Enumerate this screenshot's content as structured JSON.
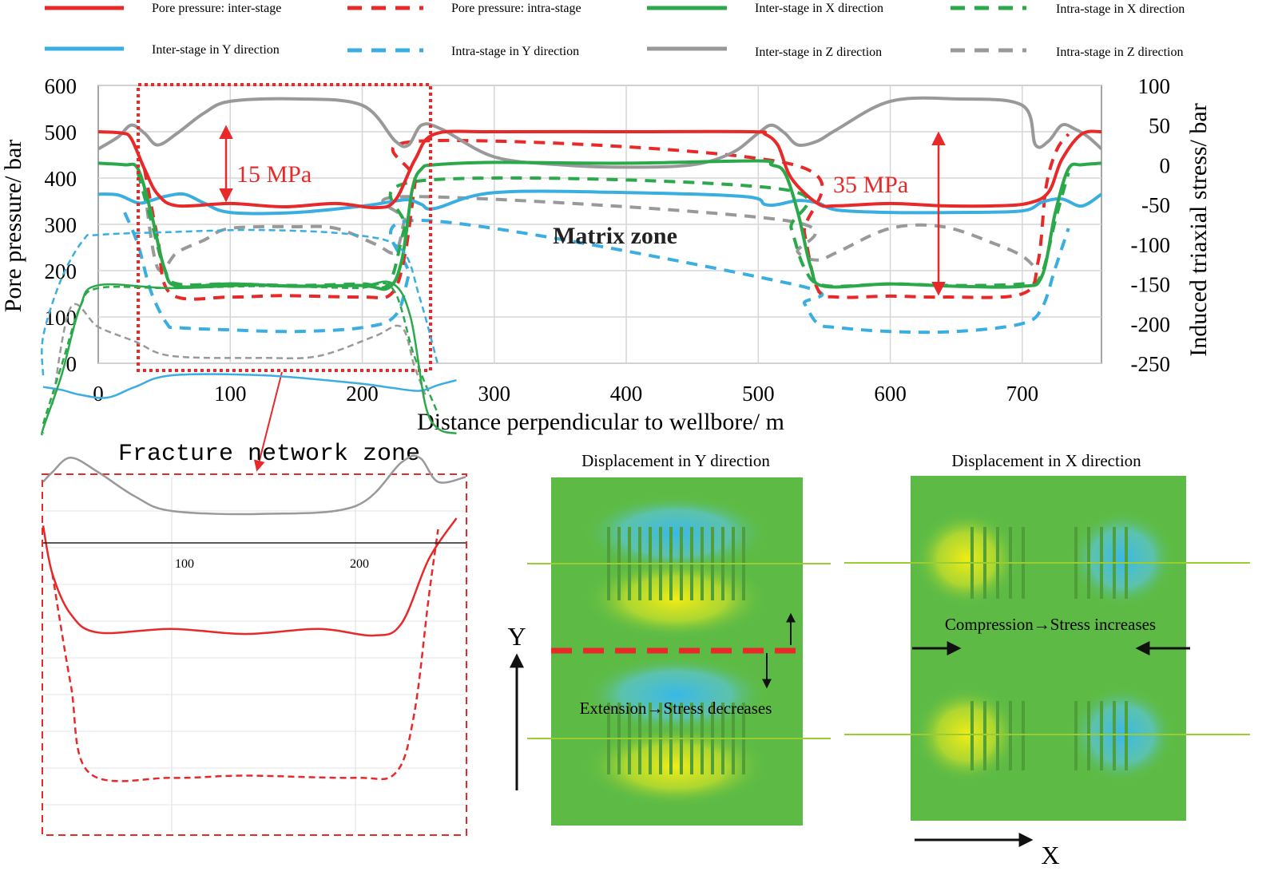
{
  "chart_data": {
    "type": "line",
    "x_range": [
      0,
      760
    ],
    "x_ticks": [
      0,
      100,
      200,
      300,
      400,
      500,
      600,
      700
    ],
    "xlabel": "Distance perpendicular to wellbore/ m",
    "ylabel_left": "Pore pressure/ bar",
    "ylabel_right": "Induced triaxial stress/ bar",
    "y_left_range": [
      0,
      600
    ],
    "y_left_ticks": [
      0,
      100,
      200,
      300,
      400,
      500,
      600
    ],
    "y_right_range": [
      -250,
      100
    ],
    "y_right_ticks": [
      -250,
      -200,
      -150,
      -100,
      -50,
      0,
      50,
      100
    ],
    "legend": [
      {
        "id": "pp_inter",
        "label": "Pore pressure: inter-stage",
        "color": "#e8292a",
        "dash": false,
        "axis": "left"
      },
      {
        "id": "pp_intra",
        "label": "Pore pressure: intra-stage",
        "color": "#e8292a",
        "dash": true,
        "axis": "left"
      },
      {
        "id": "x_inter",
        "label": "Inter-stage in X direction",
        "color": "#2aa84a",
        "dash": false,
        "axis": "right"
      },
      {
        "id": "x_intra",
        "label": "Intra-stage in X direction",
        "color": "#2aa84a",
        "dash": true,
        "axis": "right"
      },
      {
        "id": "y_inter",
        "label": "Inter-stage in Y direction",
        "color": "#3aaee0",
        "dash": false,
        "axis": "right"
      },
      {
        "id": "y_intra",
        "label": "Intra-stage in Y direction",
        "color": "#3aaee0",
        "dash": true,
        "axis": "right"
      },
      {
        "id": "z_inter",
        "label": "Inter-stage in Z direction",
        "color": "#999999",
        "dash": false,
        "axis": "right"
      },
      {
        "id": "z_intra",
        "label": "Intra-stage in Z direction",
        "color": "#999999",
        "dash": true,
        "axis": "right"
      }
    ],
    "series": {
      "pp_inter": {
        "x": [
          0,
          18,
          25,
          35,
          45,
          60,
          100,
          140,
          180,
          210,
          225,
          240,
          255,
          300,
          400,
          495,
          505,
          515,
          525,
          545,
          560,
          600,
          640,
          680,
          705,
          720,
          730,
          745,
          760
        ],
        "y": [
          500,
          497,
          485,
          420,
          365,
          340,
          345,
          338,
          345,
          336,
          352,
          440,
          495,
          500,
          500,
          500,
          495,
          470,
          400,
          345,
          340,
          345,
          340,
          340,
          346,
          370,
          440,
          495,
          500
        ]
      },
      "pp_intra": {
        "x": [
          35,
          45,
          55,
          100,
          140,
          200,
          222,
          232,
          240,
          245,
          525,
          535,
          545,
          560,
          600,
          640,
          700,
          712,
          718,
          726,
          735
        ],
        "y": [
          420,
          270,
          150,
          143,
          146,
          143,
          150,
          230,
          390,
          480,
          430,
          280,
          160,
          143,
          145,
          143,
          150,
          220,
          380,
          460,
          495
        ]
      },
      "x_inter": {
        "x": [
          0,
          20,
          30,
          40,
          50,
          60,
          100,
          150,
          200,
          220,
          230,
          238,
          245,
          255,
          300,
          400,
          500,
          510,
          520,
          530,
          540,
          550,
          600,
          650,
          700,
          715,
          725,
          735,
          745,
          760
        ],
        "y": [
          2,
          0,
          -5,
          -60,
          -130,
          -153,
          -150,
          -153,
          -152,
          -155,
          -120,
          -30,
          -5,
          0,
          3,
          2,
          5,
          0,
          -10,
          -60,
          -130,
          -153,
          -150,
          -153,
          -153,
          -140,
          -60,
          -5,
          0,
          2
        ]
      },
      "x_intra": {
        "x": [
          30,
          40,
          50,
          60,
          100,
          150,
          200,
          220,
          232,
          245,
          515,
          525,
          535,
          550,
          600,
          650,
          700,
          714,
          725,
          735
        ],
        "y": [
          -10,
          -70,
          -130,
          -150,
          -150,
          -152,
          -150,
          -150,
          -80,
          -20,
          -30,
          -80,
          -130,
          -152,
          -150,
          -152,
          -150,
          -140,
          -70,
          -10
        ]
      },
      "y_inter": {
        "x": [
          0,
          15,
          30,
          40,
          50,
          65,
          80,
          100,
          150,
          200,
          220,
          235,
          245,
          255,
          300,
          400,
          490,
          505,
          515,
          530,
          545,
          560,
          600,
          650,
          700,
          715,
          730,
          745,
          760
        ],
        "y": [
          -37,
          -38,
          -48,
          -45,
          -40,
          -37,
          -48,
          -60,
          -60,
          -52,
          -47,
          -44,
          -50,
          -55,
          -35,
          -35,
          -40,
          -50,
          -50,
          -45,
          -48,
          -57,
          -60,
          -60,
          -58,
          -47,
          -43,
          -52,
          -37
        ]
      },
      "y_intra": {
        "x": [
          20,
          30,
          40,
          52,
          60,
          100,
          150,
          200,
          225,
          235,
          245,
          525,
          535,
          545,
          560,
          600,
          650,
          700,
          715,
          725,
          735
        ],
        "y": [
          -60,
          -100,
          -160,
          -200,
          -205,
          -208,
          -210,
          -205,
          -190,
          -140,
          -70,
          -150,
          -175,
          -200,
          -205,
          -210,
          -210,
          -200,
          -180,
          -130,
          -80
        ]
      },
      "z_inter": {
        "x": [
          0,
          15,
          25,
          35,
          45,
          60,
          80,
          100,
          150,
          200,
          225,
          235,
          245,
          260,
          300,
          350,
          400,
          450,
          480,
          500,
          510,
          520,
          530,
          545,
          560,
          600,
          650,
          700,
          710,
          720,
          730,
          740,
          750,
          760
        ],
        "y": [
          20,
          35,
          50,
          40,
          25,
          40,
          65,
          80,
          83,
          75,
          30,
          25,
          50,
          45,
          10,
          0,
          -3,
          0,
          15,
          40,
          50,
          40,
          25,
          30,
          45,
          80,
          83,
          75,
          25,
          30,
          50,
          45,
          35,
          20
        ]
      },
      "z_intra": {
        "x": [
          35,
          45,
          60,
          80,
          100,
          150,
          180,
          210,
          225,
          232,
          238,
          520,
          530,
          545,
          560,
          600,
          640,
          680,
          700,
          710
        ],
        "y": [
          -30,
          -130,
          -110,
          -95,
          -80,
          -78,
          -80,
          -100,
          -110,
          -70,
          -40,
          -70,
          -110,
          -120,
          -110,
          -80,
          -78,
          -100,
          -115,
          -130
        ]
      }
    },
    "annotations": {
      "mpa_left": "15 MPa",
      "mpa_right": "35 MPa",
      "matrix_zone": "Matrix zone"
    },
    "zoom_panel": {
      "title": "Fracture network zone",
      "x_ticks": [
        100,
        200
      ]
    }
  },
  "panels": {
    "disp_y": {
      "title": "Displacement in Y direction",
      "axis_label": "Y",
      "note": "Extension→Stress decreases"
    },
    "disp_x": {
      "title": "Displacement in X direction",
      "axis_label": "X",
      "note": "Compression→Stress increases"
    }
  },
  "colors": {
    "red": "#e8292a",
    "green": "#2aa84a",
    "blue": "#3aaee0",
    "gray": "#999999",
    "field_green": "#5dbb45",
    "field_yellow": "#f2ec14",
    "field_blue": "#38b8e8"
  }
}
